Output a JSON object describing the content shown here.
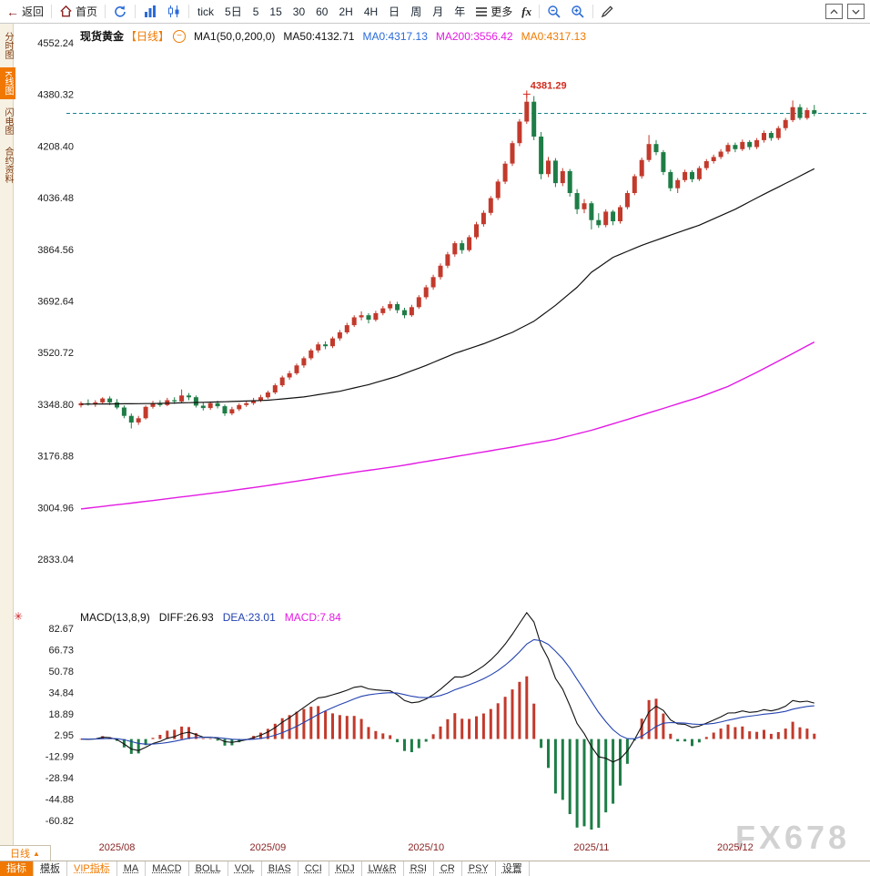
{
  "toolbar": {
    "back": "返回",
    "home": "首页",
    "periods": [
      "tick",
      "5日",
      "5",
      "15",
      "30",
      "60",
      "2H",
      "4H",
      "日",
      "周",
      "月",
      "年"
    ],
    "more": "更多",
    "fx": "fx"
  },
  "sidebar": {
    "items": [
      {
        "label": "分时图",
        "active": false
      },
      {
        "label": "K线图",
        "active": true
      },
      {
        "label": "闪电图",
        "active": false
      },
      {
        "label": "合约资料",
        "active": false
      }
    ]
  },
  "legend": {
    "symbol": "现货黄金",
    "period": "【日线】",
    "ma_group": "MA1(50,0,200,0)",
    "ma50": "MA50:4132.71",
    "ma0_blue": "MA0:4317.13",
    "ma200": "MA200:3556.42",
    "ma0_orange": "MA0:4317.13"
  },
  "macd_legend": {
    "name": "MACD(13,8,9)",
    "diff": "DIFF:26.93",
    "dea": "DEA:23.01",
    "macd": "MACD:7.84"
  },
  "bottom": {
    "period": "日线",
    "tabs": [
      {
        "label": "指标",
        "active": true
      },
      {
        "label": "模板"
      },
      {
        "label": "VIP指标",
        "vip": true
      },
      {
        "label": "MA"
      },
      {
        "label": "MACD"
      },
      {
        "label": "BOLL"
      },
      {
        "label": "VOL"
      },
      {
        "label": "BIAS"
      },
      {
        "label": "CCI"
      },
      {
        "label": "KDJ"
      },
      {
        "label": "LW&R"
      },
      {
        "label": "RSI"
      },
      {
        "label": "CR"
      },
      {
        "label": "PSY"
      },
      {
        "label": "设置"
      }
    ]
  },
  "watermark": "FX678",
  "chart_data": {
    "type": "candlestick",
    "title": "现货黄金 日线",
    "current_price_line": 4317.13,
    "annotation": {
      "label": "4381.29",
      "index": 62,
      "value": 4381.29
    },
    "price_ticks": [
      4552.24,
      4380.32,
      4208.4,
      4036.48,
      3864.56,
      3692.64,
      3520.72,
      3348.8,
      3176.88,
      3004.96,
      2833.04
    ],
    "macd_ticks": [
      82.67,
      66.73,
      50.78,
      34.84,
      18.89,
      2.95,
      -12.99,
      -28.94,
      -44.88,
      -60.82
    ],
    "x_labels": [
      {
        "label": "2025/08",
        "index": 5
      },
      {
        "label": "2025/09",
        "index": 26
      },
      {
        "label": "2025/10",
        "index": 48
      },
      {
        "label": "2025/11",
        "index": 71
      },
      {
        "label": "2025/12",
        "index": 91
      }
    ],
    "macd_params": {
      "fast": 8,
      "slow": 13,
      "signal": 9
    },
    "colors": {
      "up": "#c23a2c",
      "down": "#1e7d46",
      "ma50": "#111111",
      "ma200": "#e31ae3",
      "dash": "#17818a",
      "diff": "#111111",
      "dea": "#2342b0",
      "annotation": "#d02a1e"
    },
    "candles": [
      [
        3345,
        3358,
        3338,
        3352
      ],
      [
        3352,
        3365,
        3344,
        3348
      ],
      [
        3348,
        3362,
        3340,
        3355
      ],
      [
        3355,
        3372,
        3350,
        3368
      ],
      [
        3368,
        3375,
        3346,
        3355
      ],
      [
        3355,
        3366,
        3332,
        3338
      ],
      [
        3338,
        3345,
        3302,
        3310
      ],
      [
        3310,
        3318,
        3268,
        3288
      ],
      [
        3288,
        3310,
        3280,
        3302
      ],
      [
        3302,
        3345,
        3298,
        3340
      ],
      [
        3340,
        3360,
        3334,
        3352
      ],
      [
        3352,
        3362,
        3340,
        3346
      ],
      [
        3346,
        3370,
        3342,
        3362
      ],
      [
        3362,
        3372,
        3350,
        3358
      ],
      [
        3358,
        3398,
        3355,
        3378
      ],
      [
        3378,
        3386,
        3362,
        3372
      ],
      [
        3372,
        3378,
        3338,
        3344
      ],
      [
        3344,
        3356,
        3328,
        3336
      ],
      [
        3336,
        3358,
        3330,
        3352
      ],
      [
        3352,
        3360,
        3335,
        3342
      ],
      [
        3342,
        3348,
        3310,
        3318
      ],
      [
        3318,
        3340,
        3312,
        3332
      ],
      [
        3332,
        3352,
        3326,
        3346
      ],
      [
        3346,
        3360,
        3340,
        3352
      ],
      [
        3352,
        3370,
        3346,
        3362
      ],
      [
        3362,
        3380,
        3356,
        3372
      ],
      [
        3372,
        3394,
        3366,
        3388
      ],
      [
        3388,
        3418,
        3382,
        3412
      ],
      [
        3412,
        3444,
        3406,
        3438
      ],
      [
        3438,
        3460,
        3430,
        3452
      ],
      [
        3452,
        3484,
        3446,
        3478
      ],
      [
        3478,
        3508,
        3470,
        3502
      ],
      [
        3502,
        3534,
        3496,
        3528
      ],
      [
        3528,
        3556,
        3520,
        3548
      ],
      [
        3548,
        3558,
        3532,
        3542
      ],
      [
        3542,
        3574,
        3536,
        3568
      ],
      [
        3568,
        3596,
        3560,
        3588
      ],
      [
        3588,
        3620,
        3582,
        3612
      ],
      [
        3612,
        3645,
        3606,
        3638
      ],
      [
        3638,
        3658,
        3628,
        3645
      ],
      [
        3645,
        3652,
        3618,
        3630
      ],
      [
        3630,
        3660,
        3624,
        3652
      ],
      [
        3652,
        3676,
        3645,
        3668
      ],
      [
        3668,
        3692,
        3660,
        3682
      ],
      [
        3682,
        3690,
        3652,
        3662
      ],
      [
        3662,
        3670,
        3635,
        3645
      ],
      [
        3645,
        3680,
        3640,
        3672
      ],
      [
        3672,
        3712,
        3666,
        3705
      ],
      [
        3705,
        3746,
        3698,
        3738
      ],
      [
        3738,
        3780,
        3730,
        3772
      ],
      [
        3772,
        3818,
        3764,
        3810
      ],
      [
        3810,
        3856,
        3802,
        3848
      ],
      [
        3848,
        3892,
        3840,
        3885
      ],
      [
        3885,
        3895,
        3850,
        3862
      ],
      [
        3862,
        3912,
        3856,
        3905
      ],
      [
        3905,
        3956,
        3898,
        3948
      ],
      [
        3948,
        3994,
        3940,
        3986
      ],
      [
        3986,
        4042,
        3978,
        4035
      ],
      [
        4035,
        4098,
        4028,
        4090
      ],
      [
        4090,
        4158,
        4082,
        4150
      ],
      [
        4150,
        4226,
        4142,
        4218
      ],
      [
        4218,
        4298,
        4208,
        4290
      ],
      [
        4290,
        4381.29,
        4282,
        4356
      ],
      [
        4356,
        4375,
        4228,
        4240
      ],
      [
        4240,
        4255,
        4098,
        4115
      ],
      [
        4115,
        4172,
        4105,
        4160
      ],
      [
        4160,
        4168,
        4072,
        4085
      ],
      [
        4085,
        4135,
        4075,
        4125
      ],
      [
        4125,
        4132,
        4040,
        4052
      ],
      [
        4052,
        4065,
        3982,
        3998
      ],
      [
        3998,
        4032,
        3985,
        4018
      ],
      [
        4018,
        4025,
        3931,
        3962
      ],
      [
        3962,
        3985,
        3936,
        3945
      ],
      [
        3945,
        3998,
        3938,
        3990
      ],
      [
        3990,
        3996,
        3945,
        3958
      ],
      [
        3958,
        4012,
        3950,
        4005
      ],
      [
        4005,
        4060,
        3998,
        4052
      ],
      [
        4052,
        4115,
        4045,
        4108
      ],
      [
        4108,
        4170,
        4100,
        4162
      ],
      [
        4162,
        4245,
        4155,
        4215
      ],
      [
        4215,
        4228,
        4178,
        4188
      ],
      [
        4188,
        4195,
        4112,
        4122
      ],
      [
        4122,
        4130,
        4058,
        4068
      ],
      [
        4068,
        4102,
        4052,
        4095
      ],
      [
        4095,
        4130,
        4088,
        4122
      ],
      [
        4122,
        4128,
        4088,
        4098
      ],
      [
        4098,
        4142,
        4092,
        4135
      ],
      [
        4135,
        4165,
        4128,
        4158
      ],
      [
        4158,
        4180,
        4150,
        4172
      ],
      [
        4172,
        4198,
        4165,
        4190
      ],
      [
        4190,
        4220,
        4182,
        4212
      ],
      [
        4212,
        4220,
        4188,
        4198
      ],
      [
        4198,
        4230,
        4192,
        4222
      ],
      [
        4222,
        4228,
        4196,
        4205
      ],
      [
        4205,
        4235,
        4198,
        4228
      ],
      [
        4228,
        4260,
        4220,
        4252
      ],
      [
        4252,
        4258,
        4226,
        4235
      ],
      [
        4235,
        4275,
        4228,
        4268
      ],
      [
        4268,
        4302,
        4260,
        4295
      ],
      [
        4295,
        4360,
        4288,
        4338
      ],
      [
        4338,
        4348,
        4295,
        4302
      ],
      [
        4302,
        4336,
        4296,
        4328
      ],
      [
        4328,
        4345,
        4308,
        4317
      ]
    ],
    "ma50_points": [
      [
        0,
        3349
      ],
      [
        10,
        3351
      ],
      [
        20,
        3357
      ],
      [
        26,
        3362
      ],
      [
        31,
        3373
      ],
      [
        36,
        3392
      ],
      [
        40,
        3414
      ],
      [
        44,
        3442
      ],
      [
        48,
        3478
      ],
      [
        52,
        3518
      ],
      [
        56,
        3550
      ],
      [
        60,
        3588
      ],
      [
        63,
        3625
      ],
      [
        66,
        3678
      ],
      [
        69,
        3738
      ],
      [
        71,
        3788
      ],
      [
        74,
        3838
      ],
      [
        78,
        3878
      ],
      [
        82,
        3912
      ],
      [
        86,
        3945
      ],
      [
        91,
        3998
      ],
      [
        95,
        4048
      ],
      [
        99,
        4096
      ],
      [
        102,
        4133
      ]
    ],
    "ma200_points": [
      [
        0,
        3000
      ],
      [
        10,
        3028
      ],
      [
        20,
        3058
      ],
      [
        26,
        3078
      ],
      [
        32,
        3100
      ],
      [
        38,
        3122
      ],
      [
        44,
        3142
      ],
      [
        48,
        3158
      ],
      [
        54,
        3182
      ],
      [
        60,
        3206
      ],
      [
        66,
        3232
      ],
      [
        71,
        3262
      ],
      [
        76,
        3298
      ],
      [
        81,
        3335
      ],
      [
        86,
        3372
      ],
      [
        90,
        3408
      ],
      [
        94,
        3455
      ],
      [
        98,
        3505
      ],
      [
        102,
        3556
      ]
    ]
  }
}
